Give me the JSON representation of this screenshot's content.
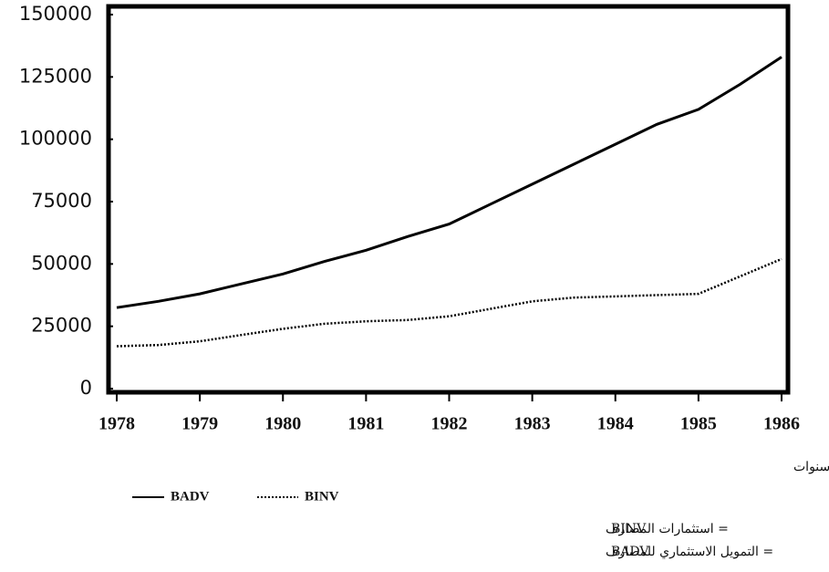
{
  "chart_data": {
    "type": "line",
    "x": [
      1978,
      1978.5,
      1979,
      1979.5,
      1980,
      1980.5,
      1981,
      1981.5,
      1982,
      1982.5,
      1983,
      1983.5,
      1984,
      1984.5,
      1985,
      1985.5,
      1986
    ],
    "series": [
      {
        "name": "BADV",
        "color": "#000000",
        "dash": "solid",
        "values": [
          32500,
          35000,
          38000,
          42000,
          46000,
          51000,
          55500,
          61000,
          66000,
          74000,
          82000,
          90000,
          98000,
          106000,
          112000,
          122000,
          133000
        ]
      },
      {
        "name": "BINV",
        "color": "#000000",
        "dash": "dotted",
        "values": [
          17000,
          17500,
          19000,
          21500,
          24000,
          26000,
          27000,
          27500,
          29000,
          32000,
          35000,
          36500,
          37000,
          37500,
          38000,
          45000,
          52000
        ]
      }
    ],
    "xlim": [
      1978,
      1986
    ],
    "xticks": [
      1978,
      1979,
      1980,
      1981,
      1982,
      1983,
      1984,
      1985,
      1986
    ],
    "ylim": [
      0,
      150000
    ],
    "yticks": [
      0,
      25000,
      50000,
      75000,
      100000,
      125000,
      150000
    ],
    "x_label": "سنوات",
    "notes": [
      {
        "code": "BINV",
        "text": "= استثمارات المصارف"
      },
      {
        "code": "BADV",
        "text": "= التمويل الاستثماري للمصارف"
      }
    ]
  }
}
